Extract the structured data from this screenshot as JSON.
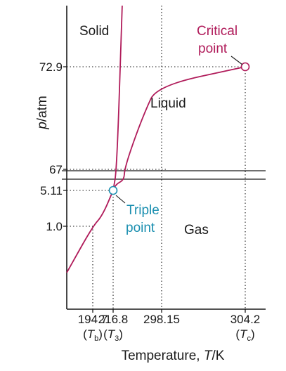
{
  "chart_data": {
    "type": "line",
    "title": "",
    "ylabel": "p/atm",
    "xlabel": "Temperature, T/K",
    "xlabel_parts": {
      "prefix": "Temperature, ",
      "symbol": "T",
      "suffix": "/K"
    },
    "ylabel_parts": {
      "symbol": "p",
      "suffix": "/atm"
    },
    "region_labels": {
      "solid": "Solid",
      "liquid": "Liquid",
      "gas": "Gas"
    },
    "points": {
      "critical": {
        "label_line1": "Critical",
        "label_line2": "point",
        "T": 304.2,
        "p": 72.9
      },
      "triple": {
        "label_line1": "Triple",
        "label_line2": "point",
        "T": 216.8,
        "p": 5.11
      }
    },
    "x_ticks": [
      {
        "value": 194.7,
        "label": "194.7",
        "sub_symbol": "T",
        "sub_index": "b"
      },
      {
        "value": 216.8,
        "label": "216.8",
        "sub_symbol": "T",
        "sub_index": "3"
      },
      {
        "value": 298.15,
        "label": "298.15",
        "sub_symbol": "",
        "sub_index": ""
      },
      {
        "value": 304.2,
        "label": "304.2",
        "sub_symbol": "T",
        "sub_index": "c"
      }
    ],
    "y_ticks": [
      {
        "value": 1.0,
        "label": "1.0"
      },
      {
        "value": 5.11,
        "label": "5.11"
      },
      {
        "value": 67,
        "label": "67"
      },
      {
        "value": 72.9,
        "label": "72.9"
      }
    ],
    "axis_break": true,
    "series": [
      {
        "curve": "sublimation",
        "points": [
          [
            180,
            0.3
          ],
          [
            194.7,
            1.0
          ],
          [
            205,
            2.2
          ],
          [
            216.8,
            5.11
          ]
        ]
      },
      {
        "curve": "fusion",
        "points": [
          [
            216.8,
            5.11
          ],
          [
            223,
            67
          ],
          [
            232,
            160
          ]
        ]
      },
      {
        "curve": "vaporization",
        "points": [
          [
            216.8,
            5.11
          ],
          [
            222,
            5.9
          ],
          [
            235,
            7.2
          ],
          [
            236,
            67
          ],
          [
            250,
            68.5
          ],
          [
            270,
            70.3
          ],
          [
            290,
            71.8
          ],
          [
            304.2,
            72.9
          ]
        ]
      }
    ],
    "colors": {
      "curve": "#b01b5a",
      "triple": "#1b8fb0",
      "critical": "#b01b5a",
      "text": "#1a1a1a",
      "axis": "#1a1a1a",
      "guide": "#1a1a1a"
    }
  }
}
